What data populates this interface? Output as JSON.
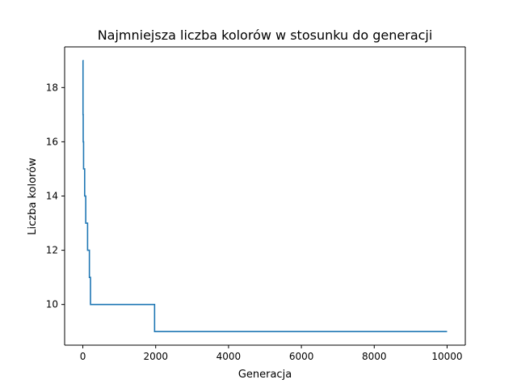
{
  "chart_data": {
    "type": "line",
    "title": "Najmniejsza liczba kolorów w stosunku do generacji",
    "xlabel": "Generacja",
    "ylabel": "Liczba kolorów",
    "xlim": [
      -500,
      10500
    ],
    "ylim": [
      8.5,
      19.5
    ],
    "xticks": [
      0,
      2000,
      4000,
      6000,
      8000,
      10000
    ],
    "yticks": [
      10,
      12,
      14,
      16,
      18
    ],
    "grid": false,
    "line_color": "#1f77b4",
    "series": [
      {
        "step": "post",
        "x": [
          0,
          5,
          10,
          20,
          30,
          50,
          80,
          100,
          130,
          180,
          210,
          1970,
          10000
        ],
        "values": [
          19,
          17,
          16,
          15,
          15,
          14,
          13,
          13,
          12,
          11,
          10,
          9,
          9
        ]
      }
    ]
  }
}
